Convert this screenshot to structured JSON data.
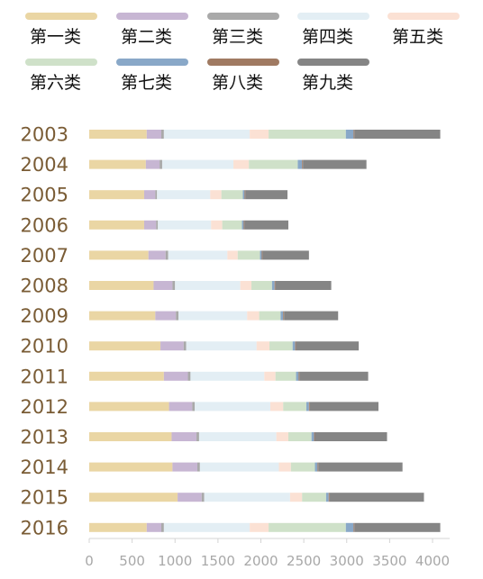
{
  "chart_data": {
    "type": "bar",
    "orientation": "horizontal",
    "stacked": true,
    "legend_position": "top",
    "categories": [
      "2003",
      "2004",
      "2005",
      "2006",
      "2007",
      "2008",
      "2009",
      "2010",
      "2011",
      "2012",
      "2013",
      "2014",
      "2015",
      "2016"
    ],
    "series": [
      {
        "name": "第一类",
        "color": "#ead6a4",
        "values": [
          670,
          660,
          640,
          640,
          690,
          750,
          770,
          830,
          870,
          930,
          960,
          970,
          1030,
          670
        ]
      },
      {
        "name": "第二类",
        "color": "#c7b6d3",
        "values": [
          170,
          160,
          130,
          140,
          200,
          220,
          240,
          270,
          280,
          270,
          290,
          290,
          280,
          170
        ]
      },
      {
        "name": "第三类",
        "color": "#a9a9a9",
        "values": [
          30,
          30,
          20,
          20,
          30,
          30,
          30,
          30,
          30,
          30,
          30,
          30,
          30,
          30
        ]
      },
      {
        "name": "第四类",
        "color": "#e3eef4",
        "values": [
          1000,
          830,
          620,
          620,
          690,
          760,
          800,
          820,
          860,
          880,
          900,
          920,
          1000,
          1000
        ]
      },
      {
        "name": "第五类",
        "color": "#fbe1d4",
        "values": [
          220,
          180,
          130,
          130,
          120,
          130,
          140,
          150,
          130,
          150,
          140,
          140,
          140,
          220
        ]
      },
      {
        "name": "第六类",
        "color": "#cfe1c9",
        "values": [
          900,
          570,
          250,
          230,
          260,
          240,
          250,
          270,
          240,
          270,
          270,
          280,
          280,
          900
        ]
      },
      {
        "name": "第七类",
        "color": "#89a8c8",
        "values": [
          90,
          50,
          20,
          20,
          20,
          30,
          30,
          30,
          30,
          30,
          30,
          30,
          30,
          90
        ]
      },
      {
        "name": "第八类",
        "color": "#a07a62",
        "values": [
          10,
          10,
          10,
          10,
          10,
          10,
          10,
          10,
          10,
          10,
          10,
          10,
          10,
          10
        ]
      },
      {
        "name": "第九类",
        "color": "#858585",
        "values": [
          1000,
          740,
          490,
          510,
          540,
          650,
          630,
          730,
          800,
          800,
          840,
          980,
          1100,
          1000
        ]
      }
    ],
    "x_ticks": [
      0,
      500,
      1000,
      1500,
      2000,
      2500,
      3000,
      3500,
      4000
    ],
    "xlim": [
      0,
      4200
    ],
    "grid": false
  }
}
